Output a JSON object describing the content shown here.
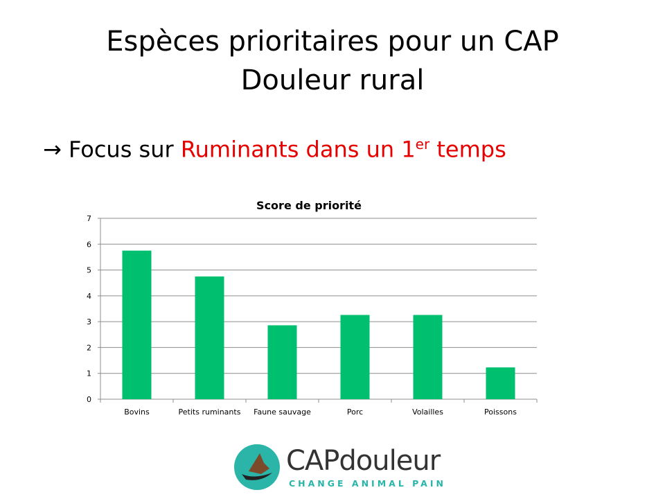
{
  "slide": {
    "title_line1": "Espèces prioritaires pour un CAP",
    "title_line2": "Douleur rural",
    "bullet_arrow": "→",
    "bullet_prefix": "Focus sur ",
    "bullet_highlight": "Ruminants dans un 1",
    "bullet_sup": "er",
    "bullet_suffix": " temps",
    "highlight_color": "#e60000"
  },
  "chart_data": {
    "type": "bar",
    "title": "Score de priorité",
    "categories": [
      "Bovins",
      "Petits ruminants",
      "Faune sauvage",
      "Porc",
      "Volailles",
      "Poissons"
    ],
    "values": [
      5.75,
      4.75,
      2.86,
      3.26,
      3.26,
      1.23
    ],
    "xlabel": "",
    "ylabel": "",
    "ylim": [
      0,
      7
    ],
    "yticks": [
      0,
      1,
      2,
      3,
      4,
      5,
      6,
      7
    ],
    "grid": true,
    "legend": "none",
    "bar_color": "#00bf6f"
  },
  "logo": {
    "main": "CAPdouleur",
    "sub": "CHANGE ANIMAL PAIN",
    "color": "#2ab5a8"
  }
}
